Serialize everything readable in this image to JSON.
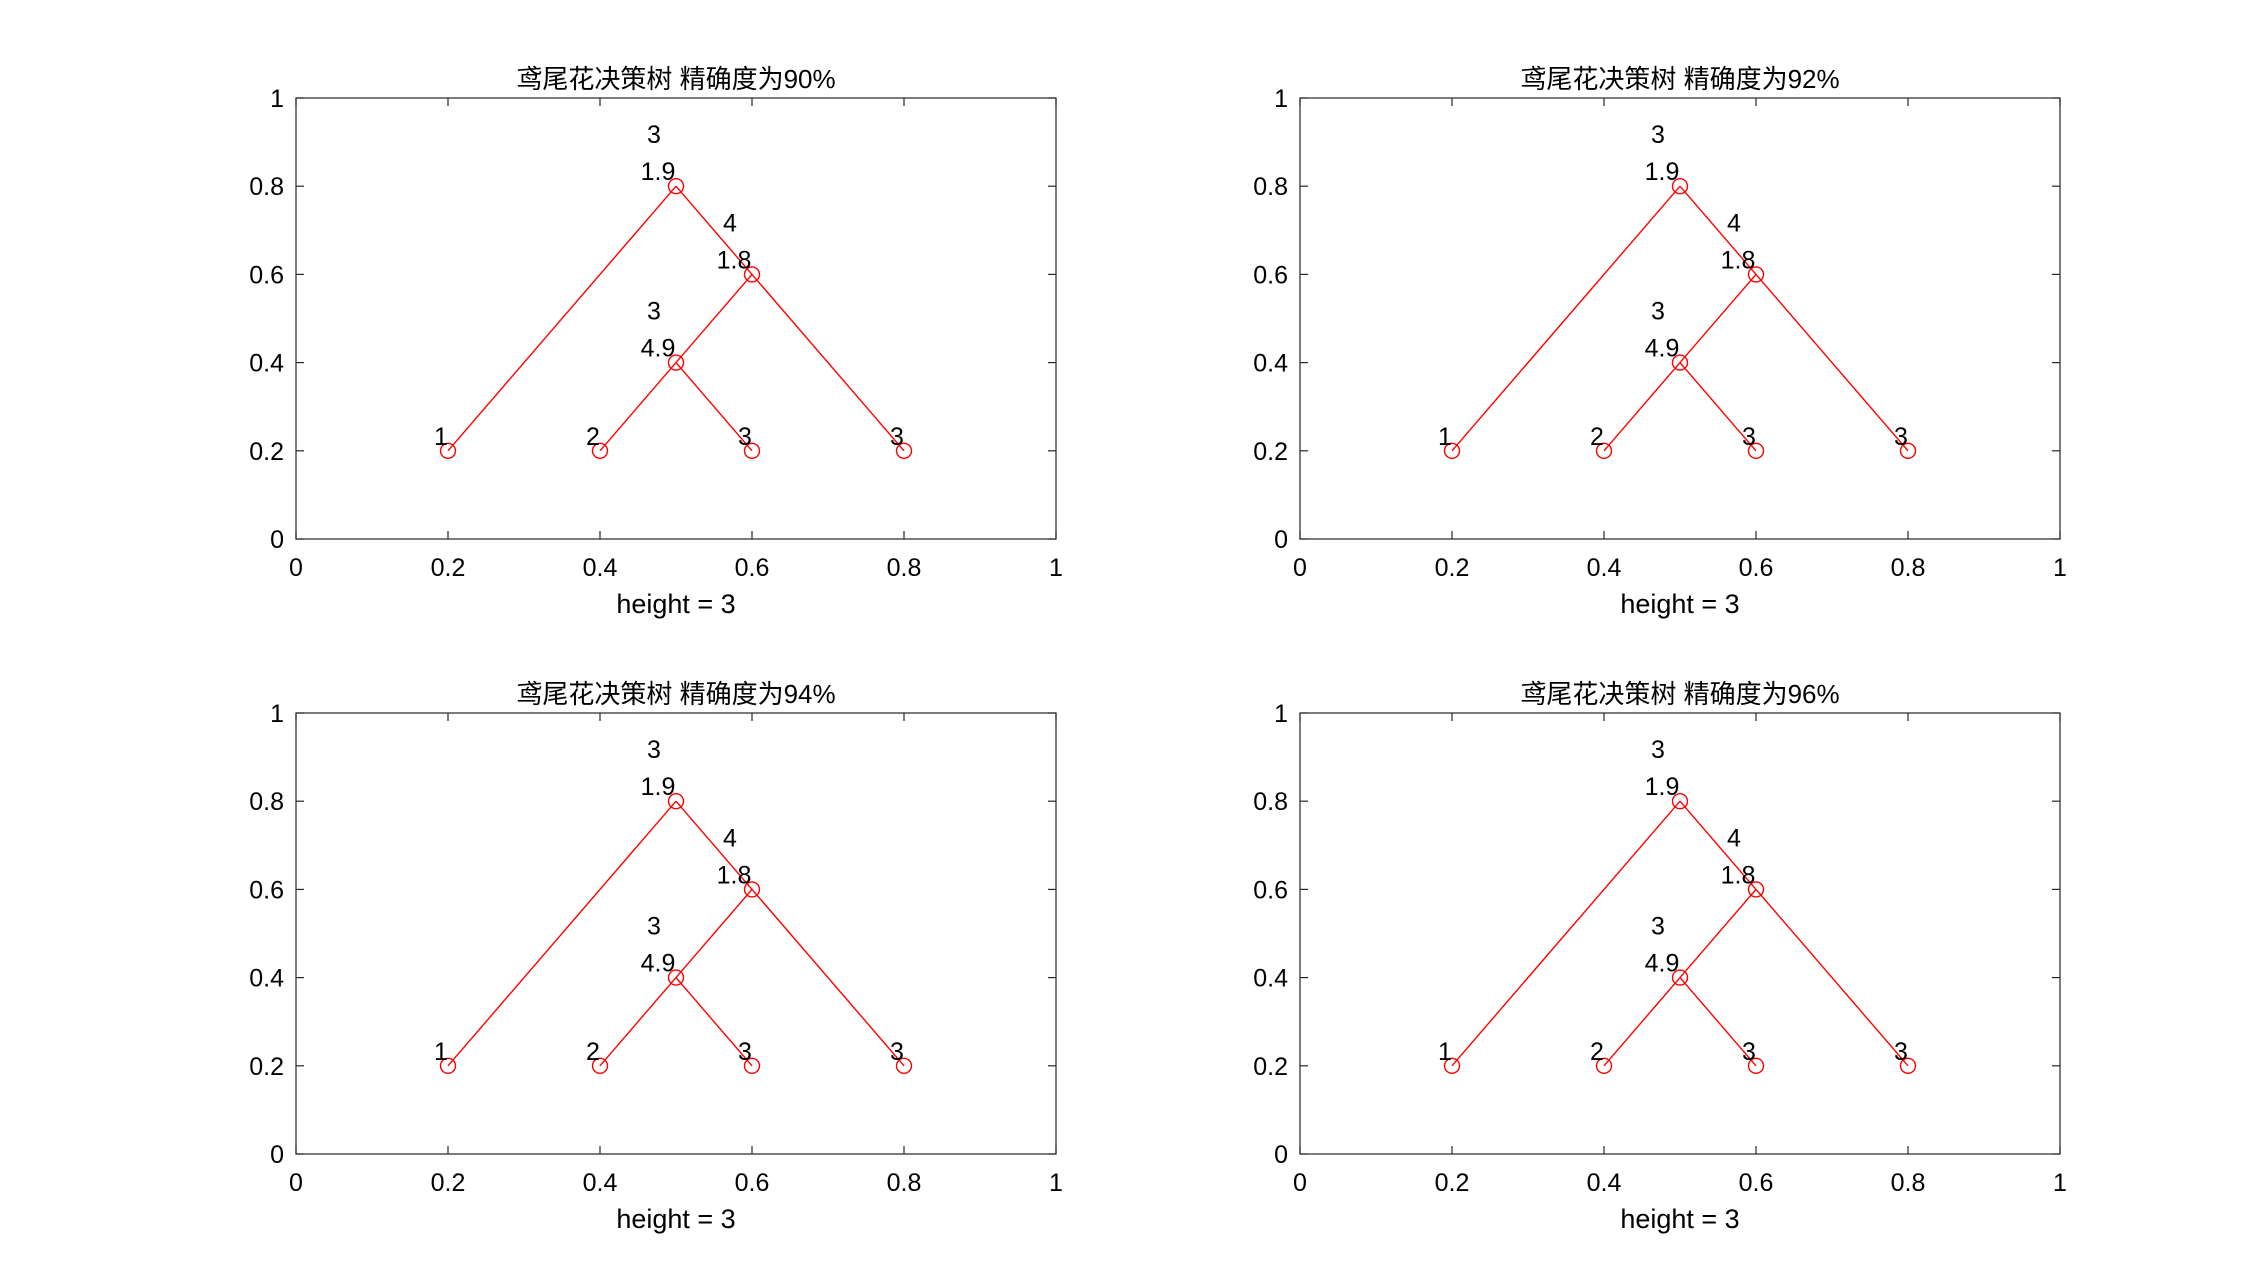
{
  "chart_data": [
    {
      "type": "scatter",
      "title": "鸢尾花决策树  精确度为90%",
      "xlabel": "height = 3",
      "ylabel": "",
      "xlim": [
        0,
        1
      ],
      "ylim": [
        0,
        1
      ],
      "xticks": [
        "0",
        "0.2",
        "0.4",
        "0.6",
        "0.8",
        "1"
      ],
      "yticks": [
        "0",
        "0.2",
        "0.4",
        "0.6",
        "0.8",
        "1"
      ],
      "grid": false,
      "series_color": "#ff0000",
      "nodes": [
        {
          "x": 0.5,
          "y": 0.8,
          "labels": [
            "3",
            "1.9"
          ]
        },
        {
          "x": 0.6,
          "y": 0.6,
          "labels": [
            "4",
            "1.8"
          ]
        },
        {
          "x": 0.5,
          "y": 0.4,
          "labels": [
            "3",
            "4.9"
          ]
        },
        {
          "x": 0.2,
          "y": 0.2,
          "labels": [
            "1"
          ]
        },
        {
          "x": 0.4,
          "y": 0.2,
          "labels": [
            "2"
          ]
        },
        {
          "x": 0.6,
          "y": 0.2,
          "labels": [
            "3"
          ]
        },
        {
          "x": 0.8,
          "y": 0.2,
          "labels": [
            "3"
          ]
        }
      ],
      "edges": [
        [
          0,
          3
        ],
        [
          0,
          1
        ],
        [
          1,
          2
        ],
        [
          1,
          6
        ],
        [
          2,
          4
        ],
        [
          2,
          5
        ]
      ]
    },
    {
      "type": "scatter",
      "title": "鸢尾花决策树  精确度为92%",
      "xlabel": "height = 3",
      "ylabel": "",
      "xlim": [
        0,
        1
      ],
      "ylim": [
        0,
        1
      ],
      "xticks": [
        "0",
        "0.2",
        "0.4",
        "0.6",
        "0.8",
        "1"
      ],
      "yticks": [
        "0",
        "0.2",
        "0.4",
        "0.6",
        "0.8",
        "1"
      ],
      "grid": false,
      "series_color": "#ff0000",
      "nodes": [
        {
          "x": 0.5,
          "y": 0.8,
          "labels": [
            "3",
            "1.9"
          ]
        },
        {
          "x": 0.6,
          "y": 0.6,
          "labels": [
            "4",
            "1.8"
          ]
        },
        {
          "x": 0.5,
          "y": 0.4,
          "labels": [
            "3",
            "4.9"
          ]
        },
        {
          "x": 0.2,
          "y": 0.2,
          "labels": [
            "1"
          ]
        },
        {
          "x": 0.4,
          "y": 0.2,
          "labels": [
            "2"
          ]
        },
        {
          "x": 0.6,
          "y": 0.2,
          "labels": [
            "3"
          ]
        },
        {
          "x": 0.8,
          "y": 0.2,
          "labels": [
            "3"
          ]
        }
      ],
      "edges": [
        [
          0,
          3
        ],
        [
          0,
          1
        ],
        [
          1,
          2
        ],
        [
          1,
          6
        ],
        [
          2,
          4
        ],
        [
          2,
          5
        ]
      ]
    },
    {
      "type": "scatter",
      "title": "鸢尾花决策树  精确度为94%",
      "xlabel": "height = 3",
      "ylabel": "",
      "xlim": [
        0,
        1
      ],
      "ylim": [
        0,
        1
      ],
      "xticks": [
        "0",
        "0.2",
        "0.4",
        "0.6",
        "0.8",
        "1"
      ],
      "yticks": [
        "0",
        "0.2",
        "0.4",
        "0.6",
        "0.8",
        "1"
      ],
      "grid": false,
      "series_color": "#ff0000",
      "nodes": [
        {
          "x": 0.5,
          "y": 0.8,
          "labels": [
            "3",
            "1.9"
          ]
        },
        {
          "x": 0.6,
          "y": 0.6,
          "labels": [
            "4",
            "1.8"
          ]
        },
        {
          "x": 0.5,
          "y": 0.4,
          "labels": [
            "3",
            "4.9"
          ]
        },
        {
          "x": 0.2,
          "y": 0.2,
          "labels": [
            "1"
          ]
        },
        {
          "x": 0.4,
          "y": 0.2,
          "labels": [
            "2"
          ]
        },
        {
          "x": 0.6,
          "y": 0.2,
          "labels": [
            "3"
          ]
        },
        {
          "x": 0.8,
          "y": 0.2,
          "labels": [
            "3"
          ]
        }
      ],
      "edges": [
        [
          0,
          3
        ],
        [
          0,
          1
        ],
        [
          1,
          2
        ],
        [
          1,
          6
        ],
        [
          2,
          4
        ],
        [
          2,
          5
        ]
      ]
    },
    {
      "type": "scatter",
      "title": "鸢尾花决策树  精确度为96%",
      "xlabel": "height = 3",
      "ylabel": "",
      "xlim": [
        0,
        1
      ],
      "ylim": [
        0,
        1
      ],
      "xticks": [
        "0",
        "0.2",
        "0.4",
        "0.6",
        "0.8",
        "1"
      ],
      "yticks": [
        "0",
        "0.2",
        "0.4",
        "0.6",
        "0.8",
        "1"
      ],
      "grid": false,
      "series_color": "#ff0000",
      "nodes": [
        {
          "x": 0.5,
          "y": 0.8,
          "labels": [
            "3",
            "1.9"
          ]
        },
        {
          "x": 0.6,
          "y": 0.6,
          "labels": [
            "4",
            "1.8"
          ]
        },
        {
          "x": 0.5,
          "y": 0.4,
          "labels": [
            "3",
            "4.9"
          ]
        },
        {
          "x": 0.2,
          "y": 0.2,
          "labels": [
            "1"
          ]
        },
        {
          "x": 0.4,
          "y": 0.2,
          "labels": [
            "2"
          ]
        },
        {
          "x": 0.6,
          "y": 0.2,
          "labels": [
            "3"
          ]
        },
        {
          "x": 0.8,
          "y": 0.2,
          "labels": [
            "3"
          ]
        }
      ],
      "edges": [
        [
          0,
          3
        ],
        [
          0,
          1
        ],
        [
          1,
          2
        ],
        [
          1,
          6
        ],
        [
          2,
          4
        ],
        [
          2,
          5
        ]
      ]
    }
  ]
}
